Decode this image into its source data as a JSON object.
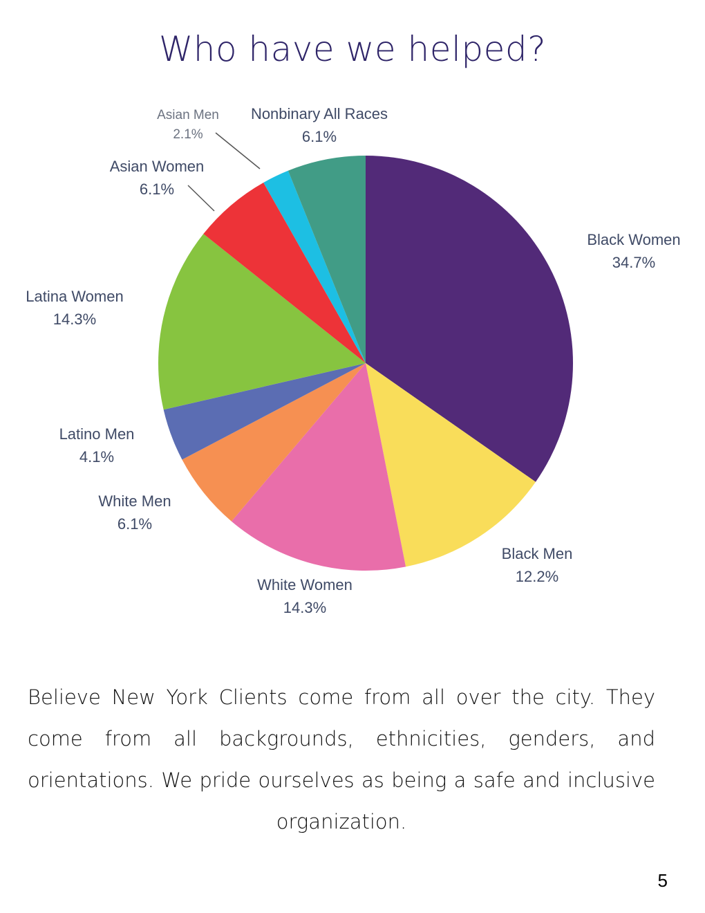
{
  "page": {
    "title": "Who have we helped?",
    "body": "Believe New York Clients come from all over the city. They come from all backgrounds, ethnicities, genders, and orientations. We pride ourselves as being a safe and inclusive organization.",
    "page_number": "5"
  },
  "chart_data": {
    "type": "pie",
    "title": "Who have we helped?",
    "start_angle": "12 o'clock",
    "direction": "clockwise",
    "slices": [
      {
        "key": "black-women",
        "label": "Black Women",
        "value": 34.7,
        "value_label": "34.7%",
        "color": "#522a78"
      },
      {
        "key": "black-men",
        "label": "Black Men",
        "value": 12.2,
        "value_label": "12.2%",
        "color": "#f9dd5a"
      },
      {
        "key": "white-women",
        "label": "White Women",
        "value": 14.3,
        "value_label": "14.3%",
        "color": "#e96eaa"
      },
      {
        "key": "white-men",
        "label": "White Men",
        "value": 6.1,
        "value_label": "6.1%",
        "color": "#f69052"
      },
      {
        "key": "latino-men",
        "label": "Latino Men",
        "value": 4.1,
        "value_label": "4.1%",
        "color": "#5b6db3"
      },
      {
        "key": "latina-women",
        "label": "Latina Women",
        "value": 14.3,
        "value_label": "14.3%",
        "color": "#87c440"
      },
      {
        "key": "asian-women",
        "label": "Asian Women",
        "value": 6.1,
        "value_label": "6.1%",
        "color": "#ed3338"
      },
      {
        "key": "asian-men",
        "label": "Asian Men",
        "value": 2.1,
        "value_label": "2.1%",
        "color": "#1dbfe3"
      },
      {
        "key": "nonbinary-all-races",
        "label": "Nonbinary All Races",
        "value": 6.1,
        "value_label": "6.1%",
        "color": "#419c86"
      }
    ]
  }
}
